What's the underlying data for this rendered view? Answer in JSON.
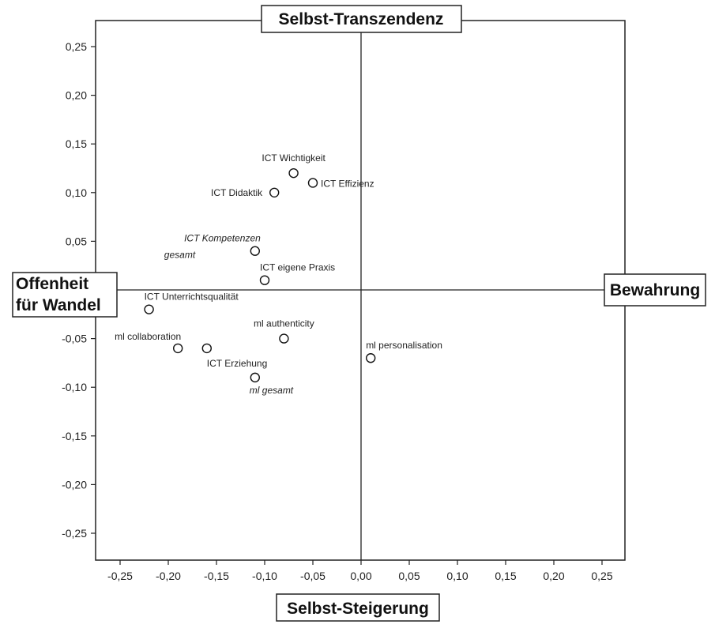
{
  "chart_data": {
    "type": "scatter",
    "xlim": [
      -0.28,
      0.28
    ],
    "ylim": [
      -0.28,
      0.28
    ],
    "x_ticks": [
      -0.25,
      -0.2,
      -0.15,
      -0.1,
      -0.05,
      0.0,
      0.05,
      0.1,
      0.15,
      0.2,
      0.25
    ],
    "y_ticks": [
      0.25,
      0.2,
      0.15,
      0.1,
      0.05,
      -0.05,
      -0.1,
      -0.15,
      -0.2,
      -0.25
    ],
    "x_tick_labels": [
      "-0,25",
      "-0,20",
      "-0,15",
      "-0,10",
      "-0,05",
      "0,00",
      "0,05",
      "0,10",
      "0,15",
      "0,20",
      "0,25"
    ],
    "y_tick_labels": [
      "0,25",
      "0,20",
      "0,15",
      "0,10",
      "0,05",
      "-0,05",
      "-0,10",
      "-0,15",
      "-0,20",
      "-0,25"
    ],
    "grid": false,
    "quadrant_labels": {
      "top": "Selbst-Transzendenz",
      "bottom": "Selbst-Steigerung",
      "left_line1": "Offenheit",
      "left_line2": "für Wandel",
      "right": "Bewahrung"
    },
    "points": [
      {
        "label": "ICT Wichtigkeit",
        "x": -0.07,
        "y": 0.12,
        "italic": false,
        "label_pos": "above"
      },
      {
        "label": "ICT Effizienz",
        "x": -0.05,
        "y": 0.11,
        "italic": false,
        "label_pos": "right"
      },
      {
        "label": "ICT Didaktik",
        "x": -0.09,
        "y": 0.1,
        "italic": false,
        "label_pos": "left"
      },
      {
        "label_line1": "ICT Kompetenzen",
        "label_line2": "gesamt",
        "x": -0.11,
        "y": 0.04,
        "italic": true,
        "label_pos": "left-two-line"
      },
      {
        "label": "ICT eigene Praxis",
        "x": -0.1,
        "y": 0.01,
        "italic": false,
        "label_pos": "above-right"
      },
      {
        "label": "ICT Unterrichtsqualität",
        "x": -0.22,
        "y": -0.02,
        "italic": false,
        "label_pos": "above-right"
      },
      {
        "label": "ml collaboration",
        "x": -0.19,
        "y": -0.06,
        "italic": false,
        "label_pos": "above-left"
      },
      {
        "label": "ICT Erziehung",
        "x": -0.16,
        "y": -0.06,
        "italic": false,
        "label_pos": "below-right"
      },
      {
        "label": "ml authenticity",
        "x": -0.08,
        "y": -0.05,
        "italic": false,
        "label_pos": "above"
      },
      {
        "label": "ml personalisation",
        "x": 0.01,
        "y": -0.07,
        "italic": false,
        "label_pos": "above-right"
      },
      {
        "label": "ml gesamt",
        "x": -0.11,
        "y": -0.09,
        "italic": true,
        "label_pos": "below"
      }
    ]
  }
}
